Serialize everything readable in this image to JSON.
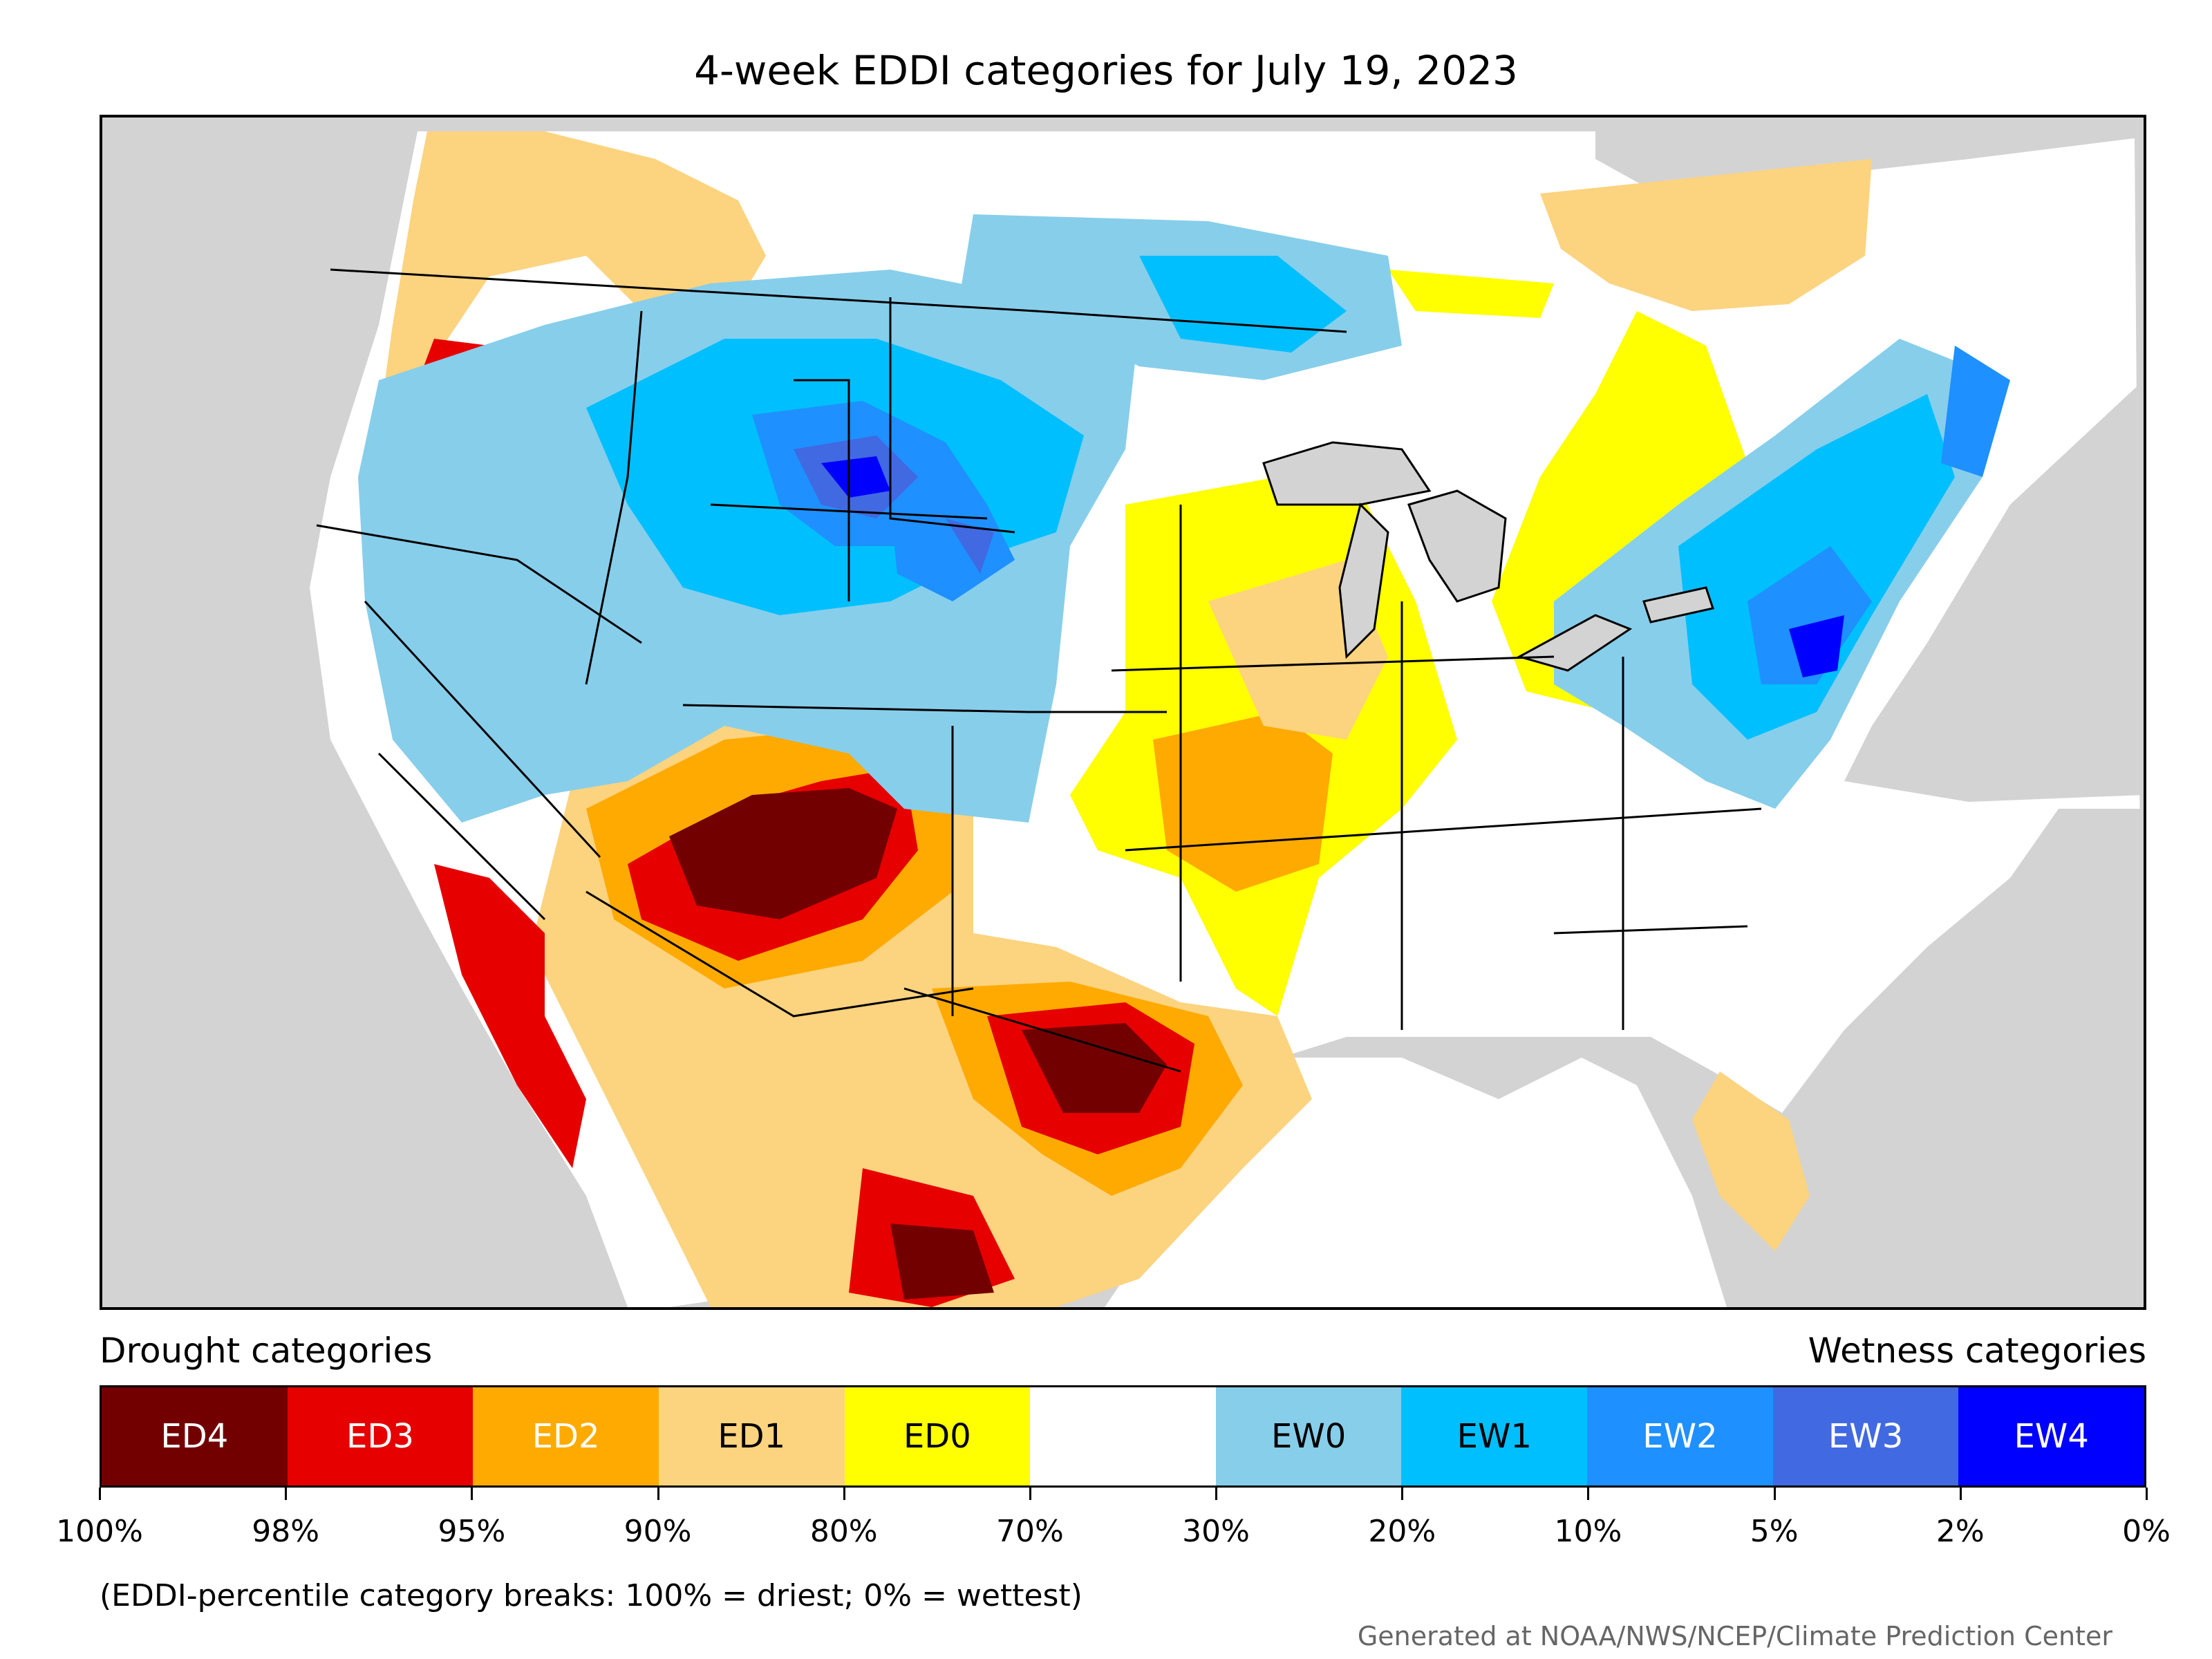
{
  "title": "4-week EDDI categories for July 19, 2023",
  "map": {
    "region": "Continental United States",
    "background_color": "#d3d3d3"
  },
  "legend": {
    "left_heading": "Drought categories",
    "right_heading": "Wetness categories",
    "categories": [
      {
        "label": "ED4",
        "color": "#730000",
        "text_color": "#ffffff"
      },
      {
        "label": "ED3",
        "color": "#e60000",
        "text_color": "#ffffff"
      },
      {
        "label": "ED2",
        "color": "#ffaa00",
        "text_color": "#ffffff"
      },
      {
        "label": "ED1",
        "color": "#fcd37f",
        "text_color": "#000000"
      },
      {
        "label": "ED0",
        "color": "#ffff00",
        "text_color": "#000000"
      },
      {
        "label": "",
        "color": "#ffffff",
        "text_color": "#000000"
      },
      {
        "label": "EW0",
        "color": "#87ceeb",
        "text_color": "#000000"
      },
      {
        "label": "EW1",
        "color": "#00bfff",
        "text_color": "#000000"
      },
      {
        "label": "EW2",
        "color": "#1e90ff",
        "text_color": "#ffffff"
      },
      {
        "label": "EW3",
        "color": "#4169e1",
        "text_color": "#ffffff"
      },
      {
        "label": "EW4",
        "color": "#0000ff",
        "text_color": "#ffffff"
      }
    ],
    "ticks": [
      "100%",
      "98%",
      "95%",
      "90%",
      "80%",
      "70%",
      "30%",
      "20%",
      "10%",
      "5%",
      "2%",
      "0%"
    ]
  },
  "note": "(EDDI-percentile category breaks: 100% = driest; 0% = wettest)",
  "credit": "Generated at NOAA/NWS/NCEP/Climate Prediction Center"
}
